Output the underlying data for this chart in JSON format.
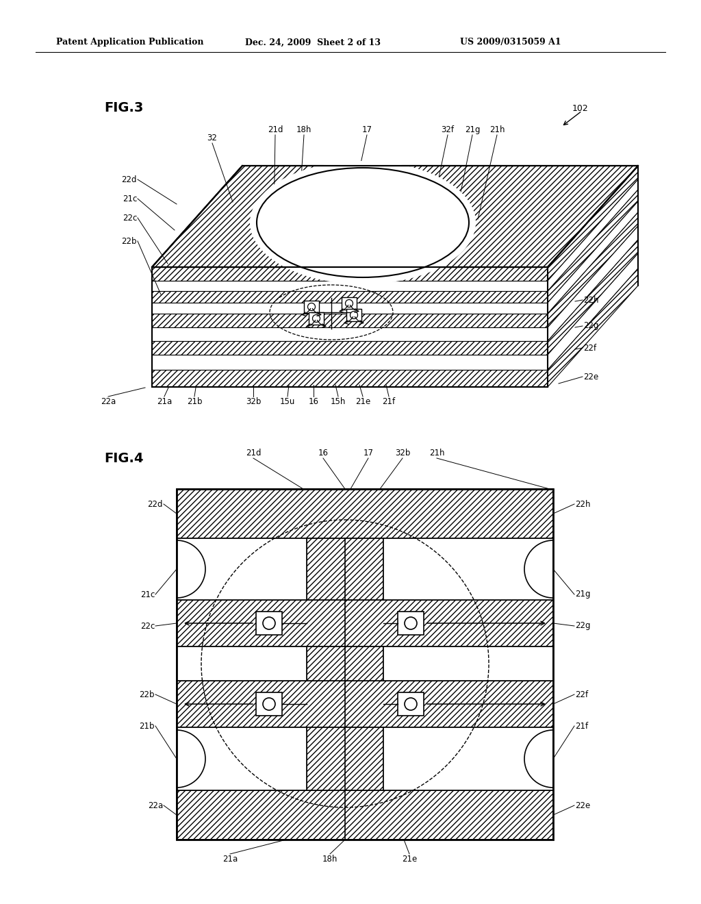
{
  "header_left": "Patent Application Publication",
  "header_mid": "Dec. 24, 2009  Sheet 2 of 13",
  "header_right": "US 2009/0315059 A1",
  "bg": "#ffffff",
  "lc": "#000000",
  "fig3_title": "FIG.3",
  "fig4_title": "FIG.4",
  "label_102": "102",
  "fig3_top_labels": [
    [
      "32",
      310,
      208
    ],
    [
      "21d",
      402,
      196
    ],
    [
      "18h",
      444,
      196
    ],
    [
      "17",
      536,
      196
    ],
    [
      "32f",
      654,
      196
    ],
    [
      "21g",
      690,
      196
    ],
    [
      "21h",
      726,
      196
    ]
  ],
  "fig3_left_labels": [
    [
      "22d",
      200,
      262
    ],
    [
      "21c",
      200,
      290
    ],
    [
      "22c",
      200,
      318
    ],
    [
      "22b",
      200,
      352
    ]
  ],
  "fig3_bot_labels": [
    [
      "22a",
      158,
      580
    ],
    [
      "21a",
      240,
      580
    ],
    [
      "21b",
      284,
      580
    ],
    [
      "32b",
      370,
      580
    ],
    [
      "15u",
      420,
      580
    ],
    [
      "16",
      458,
      580
    ],
    [
      "15h",
      494,
      580
    ],
    [
      "21e",
      530,
      580
    ],
    [
      "21f",
      568,
      580
    ]
  ],
  "fig3_right_labels": [
    [
      "22h",
      852,
      438
    ],
    [
      "22g",
      852,
      476
    ],
    [
      "22f",
      852,
      508
    ],
    [
      "22e",
      852,
      550
    ]
  ],
  "fig4_top_labels": [
    [
      "21d",
      370,
      668
    ],
    [
      "16",
      472,
      668
    ],
    [
      "17",
      538,
      668
    ],
    [
      "32b",
      588,
      668
    ],
    [
      "21h",
      638,
      668
    ]
  ],
  "fig4_left_labels": [
    [
      "22d",
      238,
      736
    ],
    [
      "21c",
      226,
      868
    ],
    [
      "22c",
      226,
      914
    ],
    [
      "22b",
      226,
      1014
    ],
    [
      "21b",
      226,
      1060
    ],
    [
      "22a",
      238,
      1176
    ]
  ],
  "fig4_right_labels": [
    [
      "22h",
      840,
      736
    ],
    [
      "21g",
      840,
      868
    ],
    [
      "22g",
      840,
      914
    ],
    [
      "22f",
      840,
      1014
    ],
    [
      "21f",
      840,
      1060
    ],
    [
      "22e",
      840,
      1176
    ]
  ],
  "fig4_bot_labels": [
    [
      "21a",
      336,
      1248
    ],
    [
      "18h",
      482,
      1248
    ],
    [
      "21e",
      598,
      1248
    ]
  ]
}
